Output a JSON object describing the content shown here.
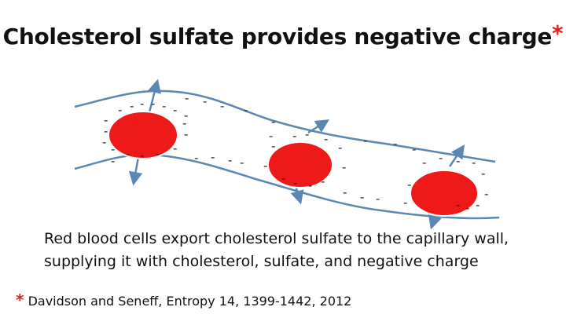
{
  "title": {
    "text": "Cholesterol sulfate provides negative charge",
    "asterisk": "*"
  },
  "diagram": {
    "vessel_color": "#5b87b5",
    "cell_color": "#ee1a1a",
    "cell_count": 3,
    "charge_symbol": "-"
  },
  "caption": {
    "line1": "Red blood cells export cholesterol sulfate to the capillary wall,",
    "line2": "supplying it with cholesterol, sulfate, and negative charge"
  },
  "citation": {
    "asterisk": "*",
    "text": "Davidson and Seneff, Entropy 14, 1399-1442, 2012"
  }
}
